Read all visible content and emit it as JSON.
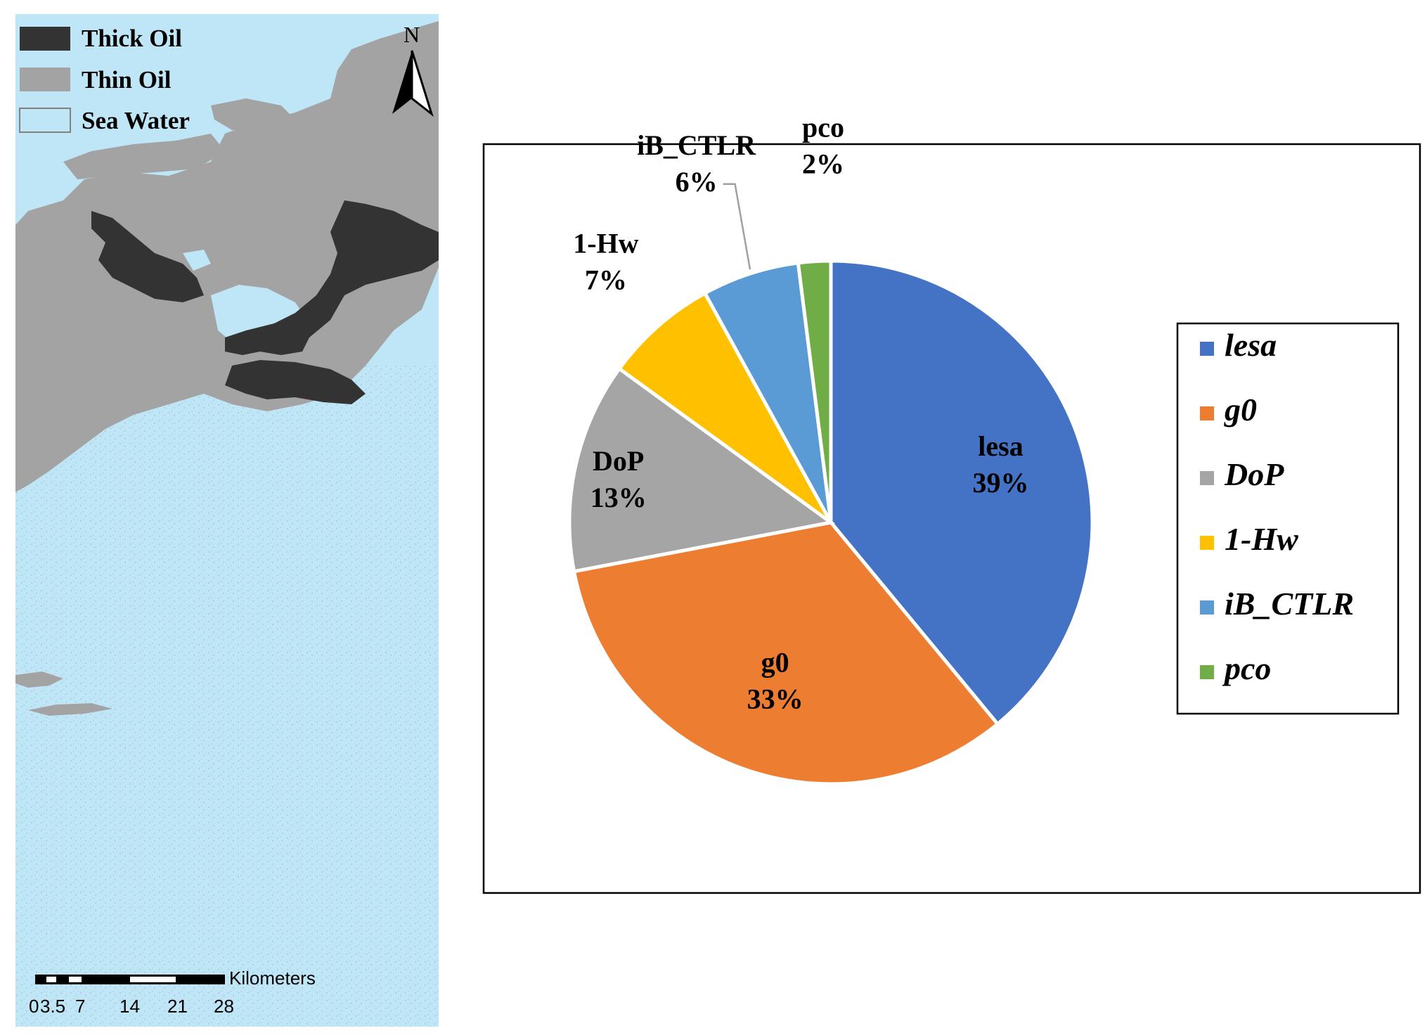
{
  "map": {
    "legend": [
      {
        "label": "Thick Oil",
        "color": "#333333"
      },
      {
        "label": "Thin Oil",
        "color": "#a3a3a3"
      },
      {
        "label": "Sea Water",
        "color": "#bfe6f7"
      }
    ],
    "north_label": "N",
    "scale_bar": {
      "unit": "Kilometers",
      "ticks": [
        "0",
        "3.5",
        "7",
        "14",
        "21",
        "28"
      ]
    },
    "colors": {
      "water": "#bfe6f7",
      "thin_oil": "#a3a3a3",
      "thick_oil": "#333333"
    }
  },
  "chart_data": {
    "type": "pie",
    "slices": [
      {
        "label": "lesa",
        "value": 39,
        "color": "#4472c4"
      },
      {
        "label": "g0",
        "value": 33,
        "color": "#ed7d31"
      },
      {
        "label": "DoP",
        "value": 13,
        "color": "#a5a5a5"
      },
      {
        "label": "1-Hw",
        "value": 7,
        "color": "#ffc000"
      },
      {
        "label": "iB_CTLR",
        "value": 6,
        "color": "#5b9bd5"
      },
      {
        "label": "pco",
        "value": 2,
        "color": "#70ad47"
      }
    ],
    "value_suffix": "%",
    "legend_position": "right",
    "title": ""
  }
}
